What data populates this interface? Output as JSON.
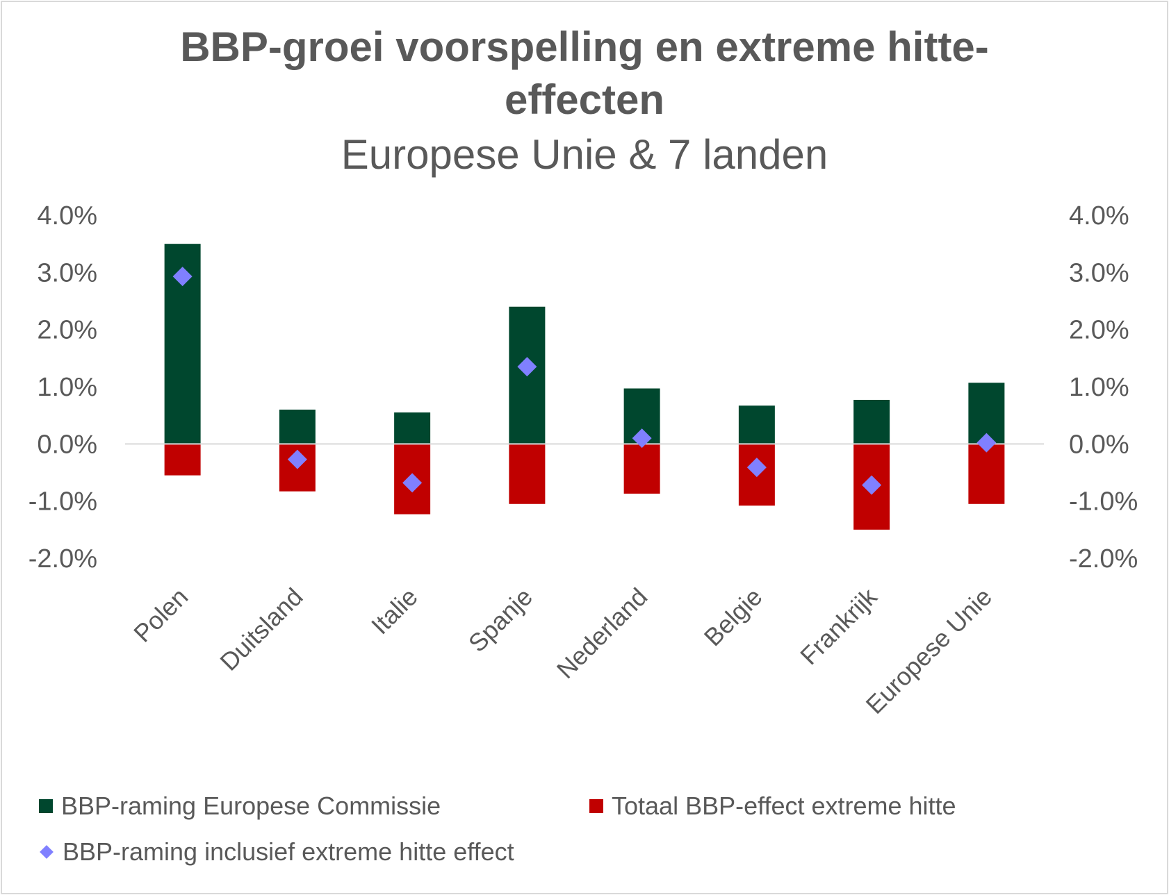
{
  "chart_data": {
    "type": "bar",
    "title": "BBP-groei voorspelling en extreme hitte-",
    "title_line2": "effecten",
    "subtitle": "Europese Unie & 7 landen",
    "categories": [
      "Polen",
      "Duitsland",
      "Italie",
      "Spanje",
      "Nederland",
      "Belgie",
      "Frankrijk",
      "Europese Unie"
    ],
    "ylim": [
      -2.0,
      4.0
    ],
    "yticks": [
      "4.0%",
      "3.0%",
      "2.0%",
      "1.0%",
      "0.0%",
      "-1.0%",
      "-2.0%"
    ],
    "ytick_values": [
      4,
      3,
      2,
      1,
      0,
      -1,
      -2
    ],
    "grid": false,
    "legend_position": "bottom",
    "series": [
      {
        "name": "BBP-raming Europese Commissie",
        "kind": "bar",
        "color": "#00472E",
        "values": [
          3.5,
          0.6,
          0.55,
          2.4,
          0.97,
          0.67,
          0.77,
          1.07
        ]
      },
      {
        "name": "Totaal BBP-effect extreme hitte",
        "kind": "bar",
        "color": "#C00000",
        "values": [
          -0.55,
          -0.83,
          -1.23,
          -1.05,
          -0.87,
          -1.08,
          -1.5,
          -1.05
        ]
      },
      {
        "name": "BBP-raming inclusief extreme hitte effect",
        "kind": "marker",
        "color": "#8080FF",
        "values": [
          2.93,
          -0.27,
          -0.68,
          1.35,
          0.1,
          -0.41,
          -0.72,
          0.02
        ]
      }
    ]
  }
}
